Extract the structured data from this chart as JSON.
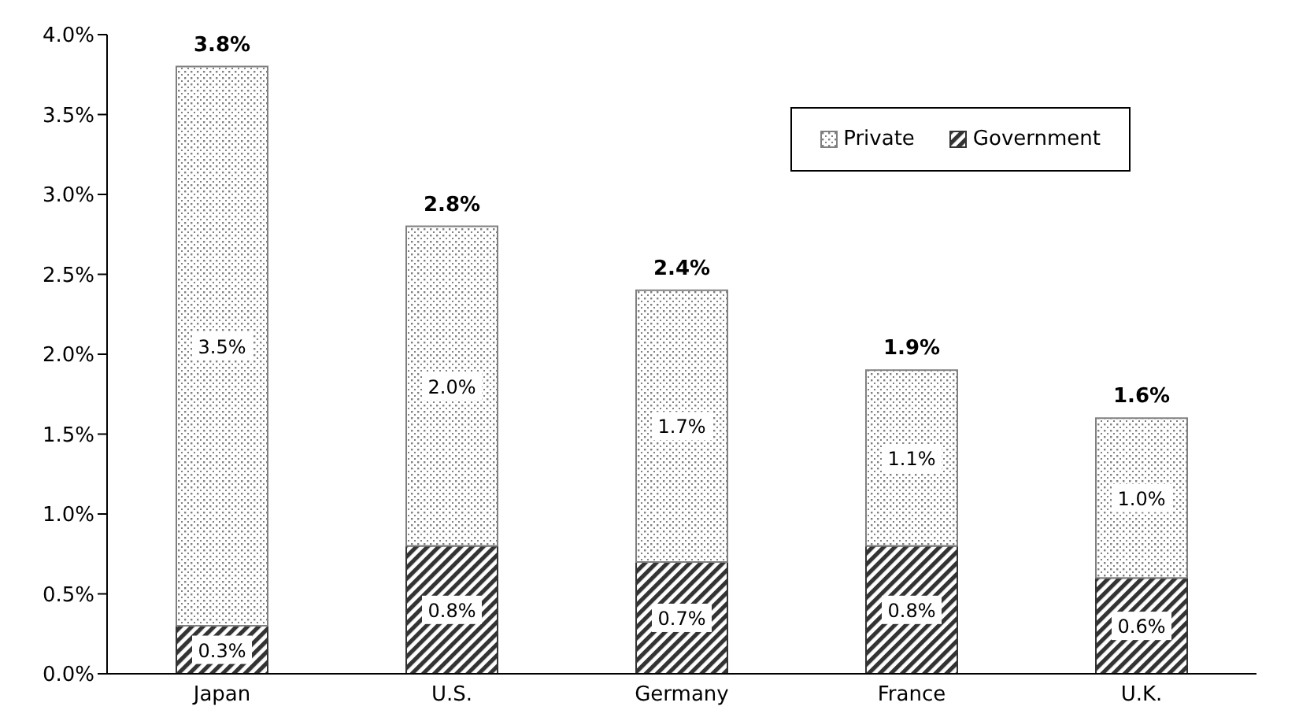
{
  "chart_data": {
    "type": "bar",
    "stacked": true,
    "categories": [
      "Japan",
      "U.S.",
      "Germany",
      "France",
      "U.K."
    ],
    "series": [
      {
        "name": "Government",
        "color": "#333333",
        "values": [
          0.3,
          0.8,
          0.7,
          0.8,
          0.6
        ],
        "value_labels": [
          "0.3%",
          "0.8%",
          "0.7%",
          "0.8%",
          "0.6%"
        ]
      },
      {
        "name": "Private",
        "color": "#808080",
        "values": [
          3.5,
          2.0,
          1.7,
          1.1,
          1.0
        ],
        "value_labels": [
          "3.5%",
          "2.0%",
          "1.7%",
          "1.1%",
          "1.0%"
        ]
      }
    ],
    "totals": [
      "3.8%",
      "2.8%",
      "2.4%",
      "1.9%",
      "1.6%"
    ],
    "ylim": [
      0,
      4
    ],
    "yticks": [
      {
        "value": 0,
        "label": "0.0%"
      },
      {
        "value": 0.5,
        "label": "0.5%"
      },
      {
        "value": 1,
        "label": "1.0%"
      },
      {
        "value": 1.5,
        "label": "1.5%"
      },
      {
        "value": 2,
        "label": "2.0%"
      },
      {
        "value": 2.5,
        "label": "2.5%"
      },
      {
        "value": 3,
        "label": "3.0%"
      },
      {
        "value": 3.5,
        "label": "3.5%"
      },
      {
        "value": 4,
        "label": "4.0%"
      }
    ],
    "grid": false,
    "legend": "top right"
  }
}
